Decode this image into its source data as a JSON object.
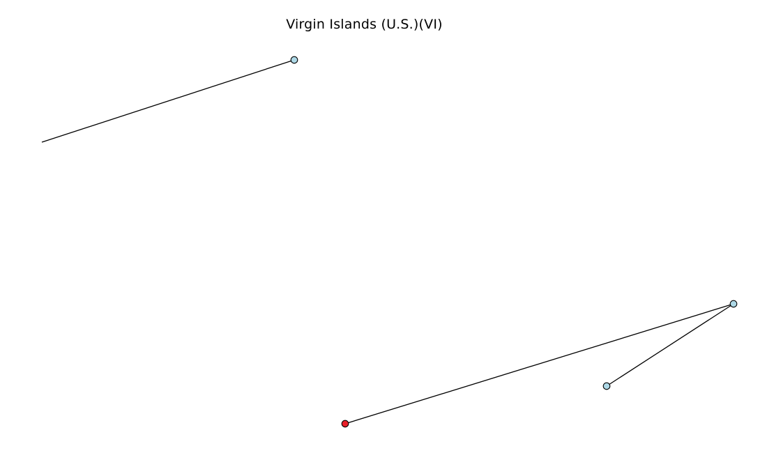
{
  "title": "Virgin Islands (U.S.)(VI)",
  "colors": {
    "edge": "#000000",
    "node_default": "#add8e6",
    "node_highlight": "#e8202a",
    "node_outline": "#000000"
  }
}
